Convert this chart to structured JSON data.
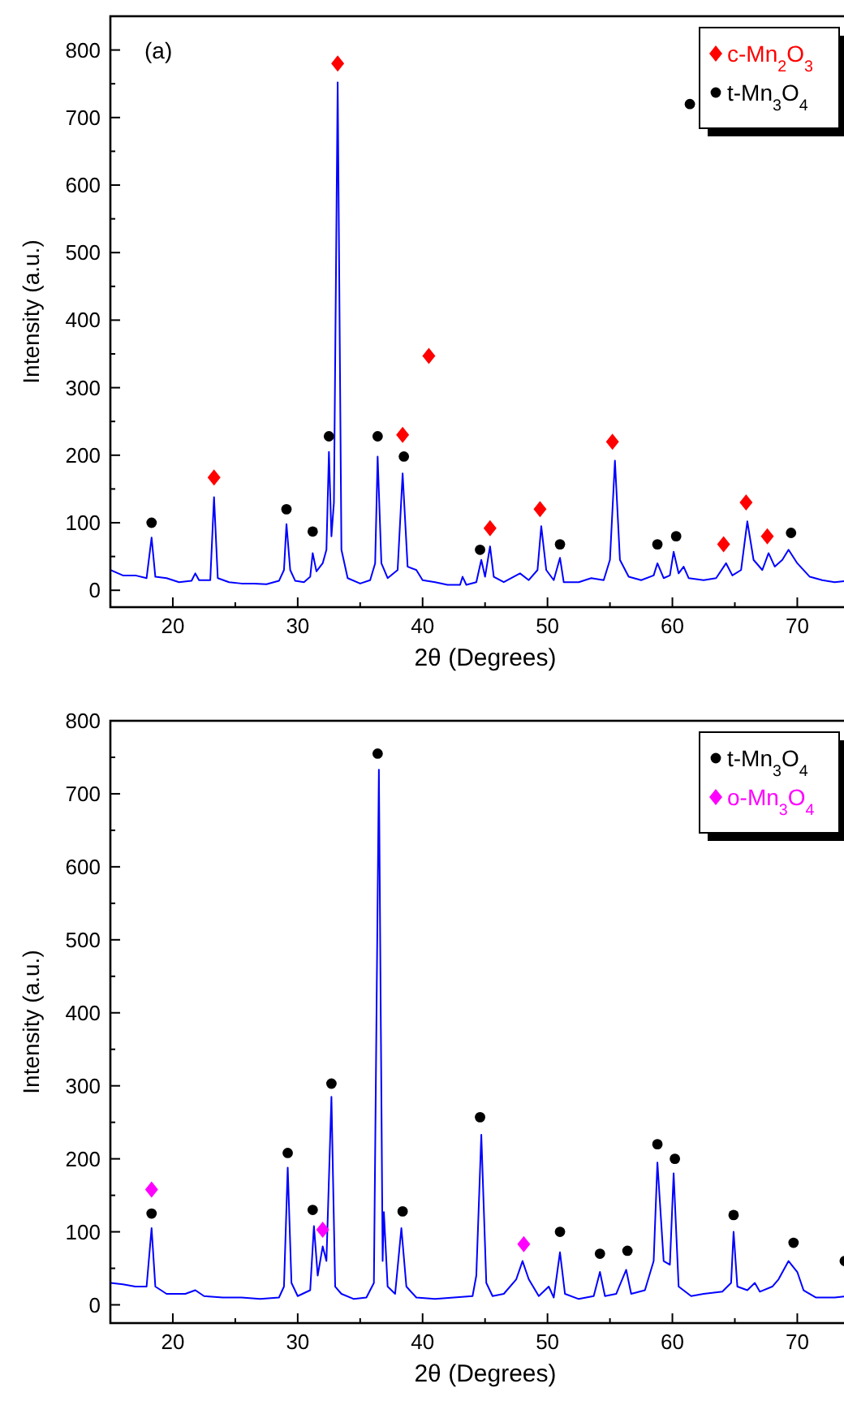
{
  "chart_data": [
    {
      "type": "line",
      "annotations": [
        "(a)"
      ],
      "xlabel": "2θ (Degrees)",
      "ylabel": "Intensity (a.u.)",
      "xlim": [
        15,
        74
      ],
      "ylim": [
        -25,
        850
      ],
      "xticks": [
        20,
        {
          "value": 25,
          "label": null
        },
        30,
        {
          "value": 35,
          "label": null
        },
        40,
        {
          "value": 45,
          "label": null
        },
        50,
        {
          "value": 55,
          "label": null
        },
        60,
        {
          "value": 65,
          "label": null
        },
        70
      ],
      "yticks": [
        0,
        {
          "value": 50,
          "label": null
        },
        100,
        {
          "value": 150,
          "label": null
        },
        200,
        {
          "value": 250,
          "label": null
        },
        300,
        {
          "value": 350,
          "label": null
        },
        400,
        {
          "value": 450,
          "label": null
        },
        500,
        {
          "value": 550,
          "label": null
        },
        600,
        {
          "value": 650,
          "label": null
        },
        700,
        {
          "value": 750,
          "label": null
        },
        800
      ],
      "legend": "top right",
      "series": [
        {
          "color": "#0000ff",
          "x": [
            15,
            16,
            17,
            17.9,
            18.3,
            18.6,
            19.5,
            20.5,
            21.5,
            21.8,
            22.1,
            23,
            23.3,
            23.6,
            24.5,
            25.5,
            26.5,
            27.5,
            28.5,
            28.9,
            29.1,
            29.4,
            29.8,
            30.5,
            31,
            31.2,
            31.5,
            32,
            32.3,
            32.5,
            32.7,
            32.9,
            33.2,
            33.5,
            34,
            35,
            35.8,
            36.2,
            36.4,
            36.7,
            37.2,
            38,
            38.4,
            38.8,
            39.5,
            40,
            41,
            42,
            43,
            43.2,
            43.5,
            44.3,
            44.7,
            45,
            45.4,
            45.7,
            46.5,
            47.8,
            48.5,
            49.2,
            49.5,
            49.9,
            50.5,
            51,
            51.3,
            52.5,
            53.5,
            54.5,
            55,
            55.4,
            55.8,
            56.5,
            57.5,
            58.5,
            58.8,
            59.3,
            59.8,
            60.1,
            60.5,
            60.9,
            61.3,
            62.5,
            63.5,
            64.3,
            64.8,
            65.5,
            66,
            66.5,
            67.2,
            67.7,
            68.2,
            68.8,
            69.3,
            70,
            71,
            72,
            73,
            74
          ],
          "values": [
            30,
            22,
            22,
            18,
            78,
            20,
            18,
            12,
            14,
            25,
            15,
            15,
            138,
            18,
            12,
            10,
            10,
            9,
            14,
            30,
            98,
            30,
            14,
            12,
            20,
            55,
            28,
            40,
            60,
            205,
            80,
            130,
            752,
            60,
            18,
            10,
            15,
            40,
            198,
            40,
            18,
            30,
            173,
            35,
            30,
            15,
            12,
            8,
            8,
            20,
            8,
            12,
            45,
            20,
            65,
            20,
            12,
            25,
            15,
            30,
            95,
            30,
            15,
            48,
            12,
            12,
            18,
            15,
            45,
            192,
            45,
            20,
            15,
            22,
            40,
            18,
            22,
            57,
            25,
            35,
            18,
            15,
            18,
            40,
            22,
            30,
            102,
            45,
            30,
            55,
            35,
            45,
            60,
            40,
            20,
            15,
            12,
            14
          ]
        },
        {
          "type": "scatter",
          "name": "c-Mn$_{2}$O$_{3}$",
          "color": "#ff0000",
          "marker": "diamond",
          "x": [
            23.3,
            33.2,
            38.4,
            40.5,
            45.4,
            49.4,
            55.2,
            64.1,
            65.9,
            67.6
          ],
          "values": [
            167,
            780,
            230,
            347,
            92,
            120,
            220,
            68,
            130,
            80
          ]
        },
        {
          "type": "scatter",
          "name": "t-Mn$_{3}$O$_{4}$",
          "color": "#000000",
          "marker": "circle",
          "x": [
            18.3,
            29.1,
            31.2,
            32.5,
            36.4,
            38.5,
            44.6,
            51,
            58.8,
            60.3,
            69.5,
            61.4
          ],
          "values": [
            100,
            120,
            87,
            228,
            228,
            198,
            60,
            68,
            68,
            80,
            85,
            720
          ]
        }
      ]
    },
    {
      "type": "line",
      "xlabel": "2θ (Degrees)",
      "ylabel": "Intensity (a.u.)",
      "xlim": [
        15,
        74
      ],
      "ylim": [
        -25,
        800
      ],
      "xticks": [
        20,
        {
          "value": 25,
          "label": null
        },
        30,
        {
          "value": 35,
          "label": null
        },
        40,
        {
          "value": 45,
          "label": null
        },
        50,
        {
          "value": 55,
          "label": null
        },
        60,
        {
          "value": 65,
          "label": null
        },
        70
      ],
      "yticks": [
        0,
        {
          "value": 50,
          "label": null
        },
        100,
        {
          "value": 150,
          "label": null
        },
        200,
        {
          "value": 250,
          "label": null
        },
        300,
        {
          "value": 350,
          "label": null
        },
        400,
        {
          "value": 450,
          "label": null
        },
        500,
        {
          "value": 550,
          "label": null
        },
        600,
        {
          "value": 650,
          "label": null
        },
        700,
        {
          "value": 750,
          "label": null
        },
        800
      ],
      "legend": "top right",
      "series": [
        {
          "color": "#0000ff",
          "x": [
            15,
            16,
            17,
            17.9,
            18.3,
            18.6,
            19.5,
            21,
            21.8,
            22.5,
            24,
            25.5,
            27,
            28.5,
            28.9,
            29.2,
            29.5,
            30,
            31,
            31.3,
            31.6,
            32,
            32.3,
            32.7,
            33,
            33.5,
            34.5,
            35.5,
            36.1,
            36.5,
            36.8,
            36.9,
            37.2,
            37.8,
            38.3,
            38.7,
            39.5,
            41,
            42.5,
            44,
            44.3,
            44.7,
            45.1,
            45.6,
            46.5,
            47.5,
            48,
            48.5,
            49.3,
            50.1,
            50.5,
            51,
            51.4,
            52.5,
            53.7,
            54.2,
            54.6,
            55.5,
            56.3,
            56.7,
            57.8,
            58.5,
            58.8,
            59.3,
            59.8,
            60.1,
            60.5,
            61.5,
            62.5,
            64,
            64.7,
            64.9,
            65.2,
            66,
            66.6,
            67,
            68,
            68.5,
            69.3,
            70,
            70.5,
            71.5,
            73,
            74
          ],
          "values": [
            30,
            28,
            25,
            25,
            105,
            25,
            15,
            15,
            20,
            12,
            10,
            10,
            8,
            10,
            25,
            188,
            30,
            12,
            20,
            108,
            40,
            80,
            60,
            285,
            25,
            15,
            8,
            10,
            30,
            733,
            60,
            127,
            25,
            15,
            105,
            25,
            10,
            8,
            10,
            12,
            40,
            233,
            30,
            12,
            15,
            35,
            60,
            35,
            12,
            25,
            10,
            72,
            15,
            8,
            12,
            45,
            12,
            15,
            48,
            15,
            20,
            60,
            195,
            60,
            55,
            180,
            25,
            12,
            15,
            18,
            30,
            100,
            25,
            20,
            30,
            18,
            25,
            35,
            60,
            45,
            20,
            10,
            10,
            12
          ]
        },
        {
          "type": "scatter",
          "name": "t-Mn$_{3}$O$_{4}$",
          "color": "#000000",
          "marker": "circle",
          "x": [
            18.3,
            29.2,
            31.2,
            32.7,
            36.4,
            38.4,
            44.6,
            51,
            54.2,
            56.4,
            58.8,
            60.2,
            64.9,
            69.7,
            73.8
          ],
          "values": [
            125,
            208,
            130,
            303,
            755,
            128,
            257,
            100,
            70,
            74,
            220,
            200,
            123,
            85,
            60
          ]
        },
        {
          "type": "scatter",
          "name": "o-Mn$_{3}$O$_{4}$",
          "color": "#ff00ff",
          "marker": "diamond",
          "x": [
            18.3,
            32,
            48.1
          ],
          "values": [
            158,
            103,
            83
          ]
        }
      ]
    }
  ]
}
